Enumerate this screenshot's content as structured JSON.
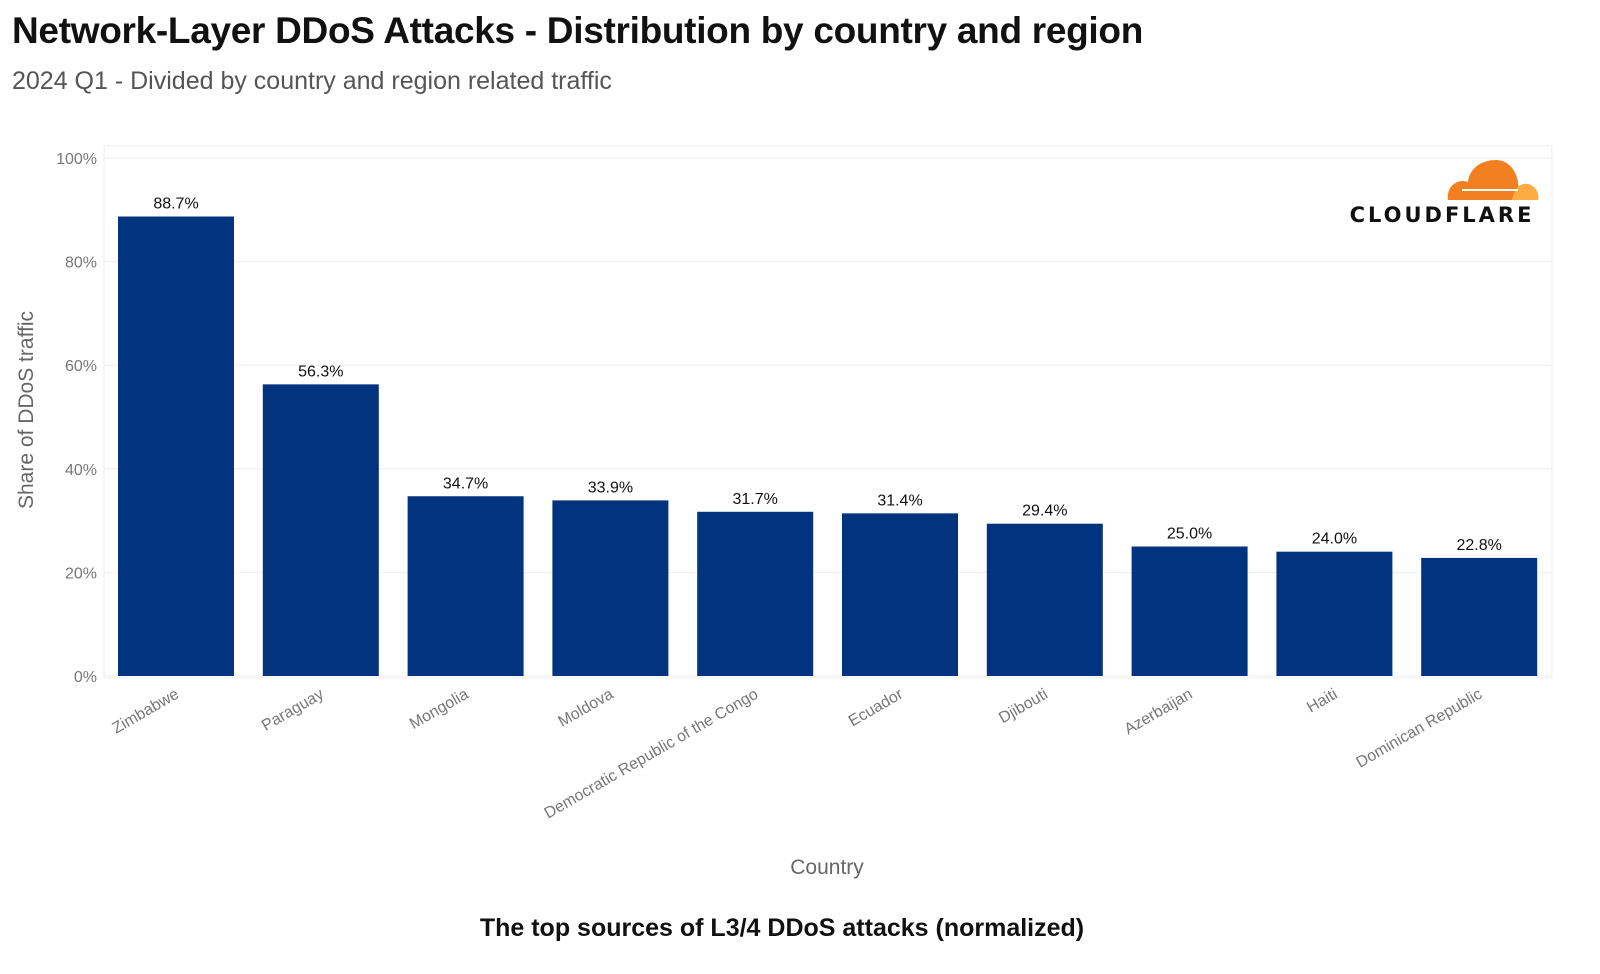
{
  "header": {
    "title": "Network-Layer DDoS Attacks - Distribution by country and region",
    "subtitle": "2024 Q1 - Divided by country and region related traffic"
  },
  "logo": {
    "text": "CLOUDFLARE",
    "colors": {
      "orange": "#F38020",
      "light_orange": "#FBAD41"
    }
  },
  "chart_data": {
    "type": "bar",
    "title": "The top sources of L3/4 DDoS attacks (normalized)",
    "xlabel": "Country",
    "ylabel": "Share of DDoS traffic",
    "ylim": [
      0,
      100
    ],
    "yticks": [
      0,
      20,
      40,
      60,
      80,
      100
    ],
    "ytick_labels": [
      "0%",
      "20%",
      "40%",
      "60%",
      "80%",
      "100%"
    ],
    "grid": true,
    "bar_color": "#02337F",
    "categories": [
      "Zimbabwe",
      "Paraguay",
      "Mongolia",
      "Moldova",
      "Democratic Republic of the Congo",
      "Ecuador",
      "Djibouti",
      "Azerbaijan",
      "Haiti",
      "Dominican Republic"
    ],
    "values": [
      88.7,
      56.3,
      34.7,
      33.9,
      31.7,
      31.4,
      29.4,
      25.0,
      24.0,
      22.8
    ],
    "value_labels": [
      "88.7%",
      "56.3%",
      "34.7%",
      "33.9%",
      "31.7%",
      "31.4%",
      "29.4%",
      "25.0%",
      "24.0%",
      "22.8%"
    ]
  }
}
